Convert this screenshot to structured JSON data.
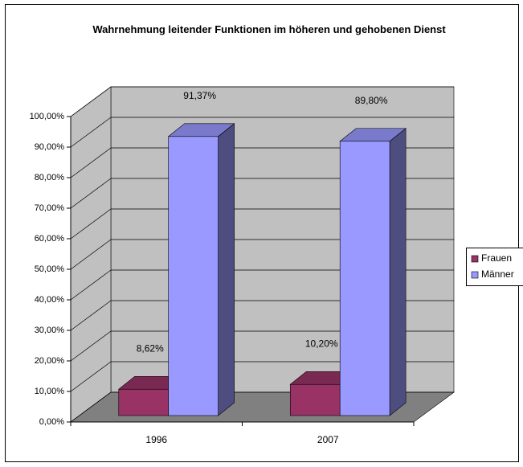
{
  "chart_data": {
    "type": "bar3d",
    "title": "Wahrnehmung leitender Funktionen im höheren und gehobenen Dienst",
    "categories": [
      "1996",
      "2007"
    ],
    "series": [
      {
        "name": "Frauen",
        "color": "#993366",
        "values": [
          8.62,
          10.2
        ],
        "value_labels": [
          "8,62%",
          "10,20%"
        ]
      },
      {
        "name": "Männer",
        "color": "#9999ff",
        "values": [
          91.37,
          89.8
        ],
        "value_labels": [
          "91,37%",
          "89,80%"
        ]
      }
    ],
    "ylim": [
      0,
      100
    ],
    "yticks": [
      {
        "value": 0,
        "label": "0,00%"
      },
      {
        "value": 10,
        "label": "10,00%"
      },
      {
        "value": 20,
        "label": "20,00%"
      },
      {
        "value": 30,
        "label": "30,00%"
      },
      {
        "value": 40,
        "label": "40,00%"
      },
      {
        "value": 50,
        "label": "50,00%"
      },
      {
        "value": 60,
        "label": "60,00%"
      },
      {
        "value": 70,
        "label": "70,00%"
      },
      {
        "value": 80,
        "label": "80,00%"
      },
      {
        "value": 90,
        "label": "90,00%"
      },
      {
        "value": 100,
        "label": "100,00%"
      }
    ],
    "grid": true,
    "legend": "right"
  }
}
